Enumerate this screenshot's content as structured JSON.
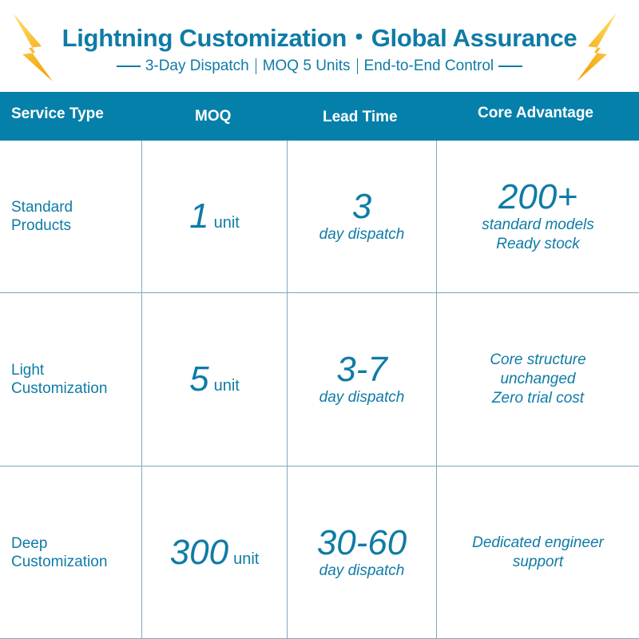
{
  "header": {
    "title": "Lightning Customization・Global Assurance",
    "subtitle": [
      "3-Day Dispatch",
      "MOQ 5 Units",
      "End-to-End Control"
    ],
    "icon": "lightning-bolt-icon"
  },
  "columns": [
    "Service Type",
    "MOQ",
    "Lead Time",
    "Core Advantage"
  ],
  "rows": [
    {
      "type": "Standard Products",
      "moq": "1",
      "moq_unit": "unit",
      "lead": "3",
      "lead_unit": "day dispatch",
      "adv_big": "200+",
      "adv": [
        "standard models",
        "Ready stock"
      ]
    },
    {
      "type": "Light Customization",
      "moq": "5",
      "moq_unit": "unit",
      "lead": "3-7",
      "lead_unit": "day dispatch",
      "adv_big": "",
      "adv": [
        "Core structure",
        "unchanged",
        "Zero trial cost"
      ]
    },
    {
      "type": "Deep Customization",
      "moq": "300",
      "moq_unit": "unit",
      "lead": "30-60",
      "lead_unit": "day dispatch",
      "adv_big": "",
      "adv": [
        "Dedicated engineer",
        "support"
      ]
    }
  ],
  "colors": {
    "accent": "#0580ab",
    "text": "#0f7ba6",
    "bolt": "#f6b50e"
  }
}
